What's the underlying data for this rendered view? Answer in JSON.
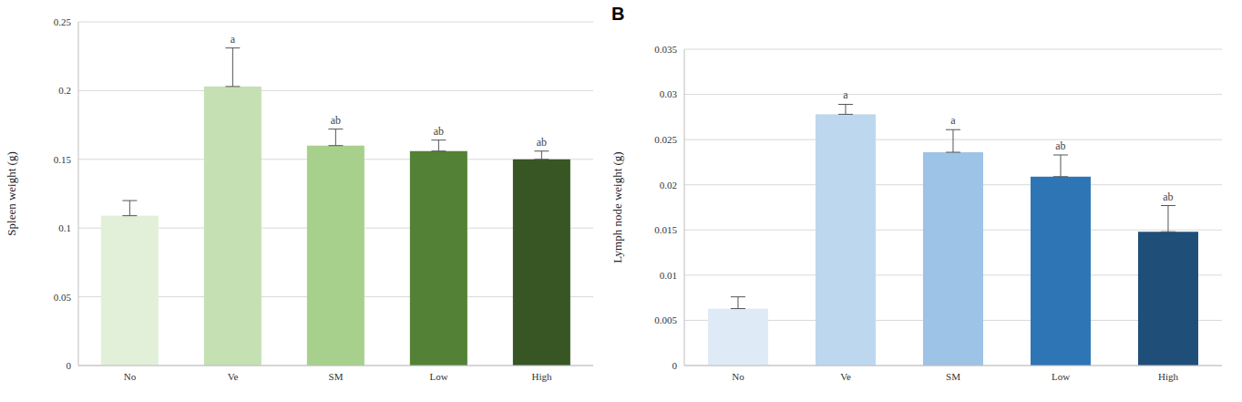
{
  "chart_data": [
    {
      "type": "bar",
      "y_label": "Spleen weight (g)",
      "categories": [
        "No",
        "Ve",
        "SM",
        "Low",
        "High"
      ],
      "values": [
        0.109,
        0.203,
        0.16,
        0.156,
        0.15
      ],
      "errors": [
        0.011,
        0.028,
        0.012,
        0.008,
        0.006
      ],
      "annotations": [
        null,
        "a",
        "ab",
        "ab",
        "ab"
      ],
      "colors": [
        "#e2efd9",
        "#c5e0b3",
        "#a8d08d",
        "#538135",
        "#375623"
      ],
      "ylim": [
        0,
        0.25
      ],
      "yticks": [
        0,
        0.05,
        0.1,
        0.15,
        0.2,
        0.25
      ],
      "grid": true
    },
    {
      "type": "bar",
      "panel_label": "B",
      "y_label": "Lymph node weight (g)",
      "categories": [
        "No",
        "Ve",
        "SM",
        "Low",
        "High"
      ],
      "values": [
        0.0063,
        0.0278,
        0.0236,
        0.0209,
        0.0148
      ],
      "errors": [
        0.0013,
        0.0011,
        0.0025,
        0.0024,
        0.0029
      ],
      "annotations": [
        null,
        "a",
        "a",
        "ab",
        "ab"
      ],
      "colors": [
        "#deebf7",
        "#bdd7ee",
        "#9dc3e6",
        "#2e75b6",
        "#1f4e79"
      ],
      "ylim": [
        0,
        0.035
      ],
      "yticks": [
        0,
        0.005,
        0.01,
        0.015,
        0.02,
        0.025,
        0.03,
        0.035
      ],
      "grid": true
    }
  ]
}
